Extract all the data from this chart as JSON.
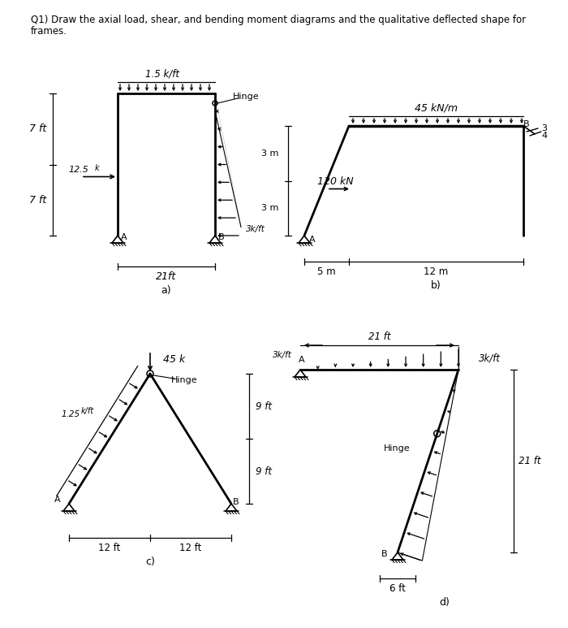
{
  "bg_color": "#ffffff",
  "title_line1": "Q1) Draw the axial load, shear, and bending moment diagrams and the qualitative deflected shape for",
  "title_line2": "frames.",
  "label_a": "a)",
  "label_b": "b)",
  "label_c": "c)",
  "label_d": "d)"
}
